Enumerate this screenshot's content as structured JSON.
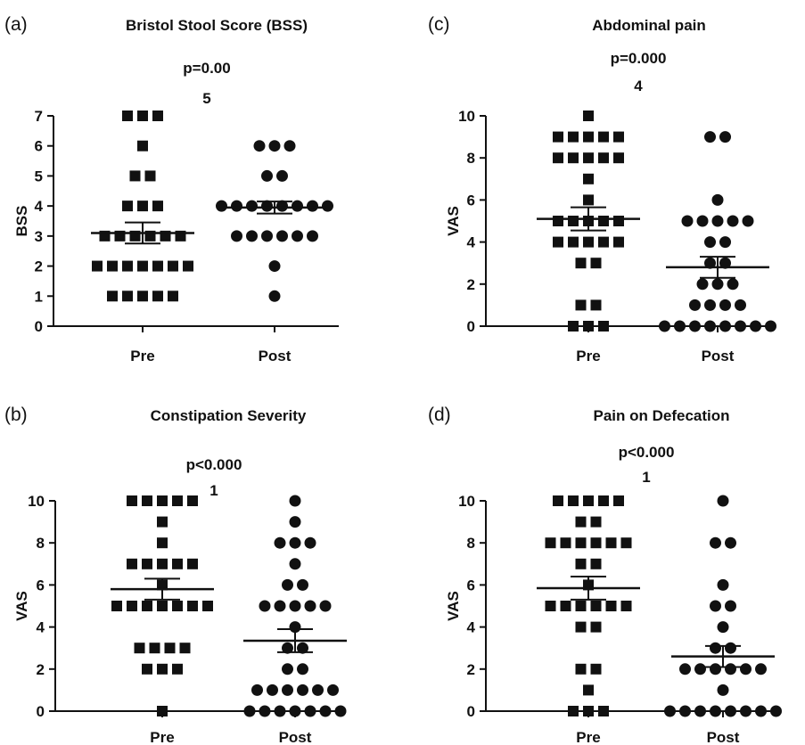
{
  "chart_data": [
    {
      "type": "scatter",
      "panel": "(a)",
      "title": "Bristol Stool Score (BSS)",
      "annotation": [
        "p=0.00",
        "5"
      ],
      "ylabel": "BSS",
      "categories": [
        "Pre",
        "Post"
      ],
      "ylim": [
        0,
        7
      ],
      "yticks": [
        0,
        1,
        2,
        3,
        4,
        5,
        6,
        7
      ],
      "series": [
        {
          "name": "Pre",
          "marker": "square",
          "values": [
            7,
            7,
            7,
            6,
            5,
            5,
            4,
            4,
            4,
            3,
            3,
            3,
            3,
            3,
            3,
            2,
            2,
            2,
            2,
            2,
            2,
            2,
            1,
            1,
            1,
            1,
            1
          ],
          "mean": 3.1,
          "sem": 0.35
        },
        {
          "name": "Post",
          "marker": "circle",
          "values": [
            6,
            6,
            6,
            5,
            5,
            4,
            4,
            4,
            4,
            4,
            4,
            4,
            4,
            3,
            3,
            3,
            3,
            3,
            3,
            2,
            1
          ],
          "mean": 3.95,
          "sem": 0.2
        }
      ]
    },
    {
      "type": "scatter",
      "panel": "(b)",
      "title": "Constipation Severity",
      "annotation": [
        "p<0.000",
        "1"
      ],
      "ylabel": "VAS",
      "categories": [
        "Pre",
        "Post"
      ],
      "ylim": [
        0,
        10
      ],
      "yticks": [
        0,
        2,
        4,
        6,
        8,
        10
      ],
      "series": [
        {
          "name": "Pre",
          "marker": "square",
          "values": [
            10,
            10,
            10,
            10,
            10,
            9,
            8,
            7,
            7,
            7,
            7,
            7,
            6,
            5,
            5,
            5,
            5,
            5,
            5,
            5,
            3,
            3,
            3,
            3,
            2,
            2,
            2,
            0
          ],
          "mean": 5.8,
          "sem": 0.5
        },
        {
          "name": "Post",
          "marker": "circle",
          "values": [
            10,
            9,
            8,
            8,
            8,
            7,
            6,
            6,
            5,
            5,
            5,
            5,
            5,
            4,
            3,
            3,
            2,
            2,
            1,
            1,
            1,
            1,
            1,
            1,
            0,
            0,
            0,
            0,
            0,
            0,
            0
          ],
          "mean": 3.35,
          "sem": 0.55
        }
      ]
    },
    {
      "type": "scatter",
      "panel": "(c)",
      "title": "Abdominal pain",
      "annotation": [
        "p=0.000",
        "4"
      ],
      "ylabel": "VAS",
      "categories": [
        "Pre",
        "Post"
      ],
      "ylim": [
        0,
        10
      ],
      "yticks": [
        0,
        2,
        4,
        6,
        8,
        10
      ],
      "series": [
        {
          "name": "Pre",
          "marker": "square",
          "values": [
            10,
            9,
            9,
            9,
            9,
            9,
            8,
            8,
            8,
            8,
            8,
            7,
            6,
            5,
            5,
            5,
            5,
            5,
            4,
            4,
            4,
            4,
            4,
            3,
            3,
            1,
            1,
            0,
            0,
            0
          ],
          "mean": 5.1,
          "sem": 0.55
        },
        {
          "name": "Post",
          "marker": "circle",
          "values": [
            9,
            9,
            6,
            5,
            5,
            5,
            5,
            5,
            4,
            4,
            3,
            3,
            2,
            2,
            2,
            1,
            1,
            1,
            1,
            0,
            0,
            0,
            0,
            0,
            0,
            0,
            0
          ],
          "mean": 2.8,
          "sem": 0.5
        }
      ]
    },
    {
      "type": "scatter",
      "panel": "(d)",
      "title": "Pain on Defecation",
      "annotation": [
        "p<0.000",
        "1"
      ],
      "ylabel": "VAS",
      "categories": [
        "Pre",
        "Post"
      ],
      "ylim": [
        0,
        10
      ],
      "yticks": [
        0,
        2,
        4,
        6,
        8,
        10
      ],
      "series": [
        {
          "name": "Pre",
          "marker": "square",
          "values": [
            10,
            10,
            10,
            10,
            10,
            9,
            9,
            8,
            8,
            8,
            8,
            8,
            8,
            7,
            7,
            6,
            5,
            5,
            5,
            5,
            5,
            5,
            4,
            4,
            2,
            2,
            1,
            0,
            0,
            0
          ],
          "mean": 5.85,
          "sem": 0.55
        },
        {
          "name": "Post",
          "marker": "circle",
          "values": [
            10,
            8,
            8,
            6,
            5,
            5,
            4,
            3,
            3,
            2,
            2,
            2,
            2,
            2,
            2,
            1,
            0,
            0,
            0,
            0,
            0,
            0,
            0,
            0
          ],
          "mean": 2.6,
          "sem": 0.5
        }
      ]
    }
  ]
}
